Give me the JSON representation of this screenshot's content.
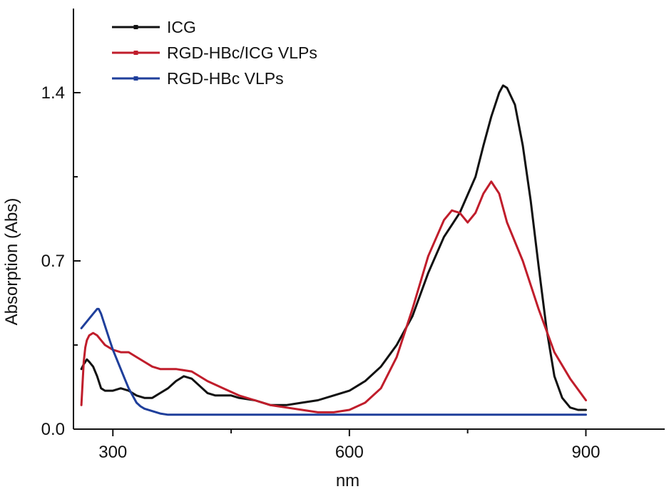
{
  "chart_data": {
    "type": "line",
    "title": "",
    "xlabel": "nm",
    "ylabel": "Absorption (Abs)",
    "xlim": [
      250,
      1000
    ],
    "ylim": [
      0.0,
      1.75
    ],
    "x_ticks": [
      300,
      600,
      900
    ],
    "x_tick_labels": [
      "300",
      "600",
      "900"
    ],
    "x_minor_ticks": [
      450,
      750
    ],
    "y_ticks": [
      0.0,
      0.7,
      1.4
    ],
    "y_tick_labels": [
      "0.0",
      "0.7",
      "1.4"
    ],
    "y_minor_ticks": [
      0.35,
      1.05
    ],
    "grid": false,
    "legend_position": "top-left",
    "series": [
      {
        "name": "ICG",
        "color": "#111111",
        "x": [
          260,
          263,
          267,
          270,
          275,
          280,
          285,
          290,
          295,
          300,
          310,
          320,
          330,
          340,
          350,
          360,
          370,
          380,
          390,
          400,
          410,
          420,
          430,
          440,
          450,
          460,
          480,
          500,
          520,
          540,
          560,
          580,
          600,
          620,
          640,
          660,
          680,
          700,
          720,
          740,
          760,
          770,
          780,
          790,
          795,
          800,
          810,
          820,
          830,
          840,
          850,
          860,
          870,
          880,
          890,
          900
        ],
        "y": [
          0.25,
          0.27,
          0.29,
          0.28,
          0.26,
          0.22,
          0.17,
          0.16,
          0.16,
          0.16,
          0.17,
          0.16,
          0.14,
          0.13,
          0.13,
          0.15,
          0.17,
          0.2,
          0.22,
          0.21,
          0.18,
          0.15,
          0.14,
          0.14,
          0.14,
          0.13,
          0.12,
          0.1,
          0.1,
          0.11,
          0.12,
          0.14,
          0.16,
          0.2,
          0.26,
          0.35,
          0.47,
          0.65,
          0.8,
          0.9,
          1.05,
          1.18,
          1.3,
          1.4,
          1.43,
          1.42,
          1.35,
          1.18,
          0.95,
          0.68,
          0.42,
          0.22,
          0.13,
          0.09,
          0.08,
          0.08
        ]
      },
      {
        "name": "RGD-HBc/ICG VLPs",
        "color": "#c01d2b",
        "x": [
          260,
          263,
          265,
          267,
          270,
          275,
          280,
          285,
          290,
          300,
          310,
          320,
          330,
          340,
          350,
          360,
          380,
          400,
          420,
          440,
          460,
          480,
          500,
          520,
          540,
          560,
          580,
          600,
          620,
          640,
          660,
          680,
          700,
          720,
          730,
          740,
          750,
          760,
          770,
          780,
          790,
          800,
          820,
          840,
          860,
          880,
          900
        ],
        "y": [
          0.1,
          0.28,
          0.34,
          0.37,
          0.39,
          0.4,
          0.39,
          0.37,
          0.35,
          0.33,
          0.32,
          0.32,
          0.3,
          0.28,
          0.26,
          0.25,
          0.25,
          0.24,
          0.2,
          0.17,
          0.14,
          0.12,
          0.1,
          0.09,
          0.08,
          0.07,
          0.07,
          0.08,
          0.11,
          0.17,
          0.3,
          0.5,
          0.72,
          0.87,
          0.91,
          0.9,
          0.86,
          0.9,
          0.98,
          1.03,
          0.98,
          0.86,
          0.7,
          0.5,
          0.32,
          0.21,
          0.12
        ]
      },
      {
        "name": "RGD-HBc VLPs",
        "color": "#1f3f9b",
        "x": [
          260,
          265,
          270,
          275,
          280,
          282,
          285,
          288,
          292,
          296,
          300,
          305,
          310,
          315,
          320,
          325,
          330,
          335,
          340,
          350,
          360,
          370,
          400,
          450,
          500,
          550,
          600,
          650,
          700,
          750,
          800,
          850,
          900
        ],
        "y": [
          0.42,
          0.44,
          0.46,
          0.48,
          0.5,
          0.5,
          0.48,
          0.45,
          0.41,
          0.37,
          0.33,
          0.29,
          0.25,
          0.21,
          0.17,
          0.14,
          0.11,
          0.095,
          0.085,
          0.075,
          0.065,
          0.06,
          0.06,
          0.06,
          0.06,
          0.06,
          0.06,
          0.06,
          0.06,
          0.06,
          0.06,
          0.06,
          0.06
        ]
      }
    ]
  }
}
